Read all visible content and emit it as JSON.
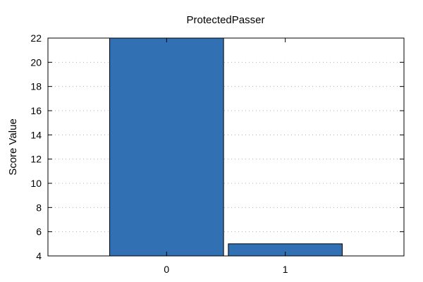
{
  "chart_data": {
    "type": "bar",
    "title": "ProtectedPasser",
    "xlabel": "",
    "ylabel": "Score Value",
    "categories": [
      "0",
      "1"
    ],
    "values": [
      22,
      5
    ],
    "ylim": [
      4,
      22
    ],
    "yticks": [
      "4",
      "6",
      "8",
      "10",
      "12",
      "14",
      "16",
      "18",
      "20",
      "22"
    ],
    "grid": true,
    "bar_color": "#3070b3",
    "bar_edge_color": "#000000",
    "grid_color": "#b0b0b0"
  }
}
